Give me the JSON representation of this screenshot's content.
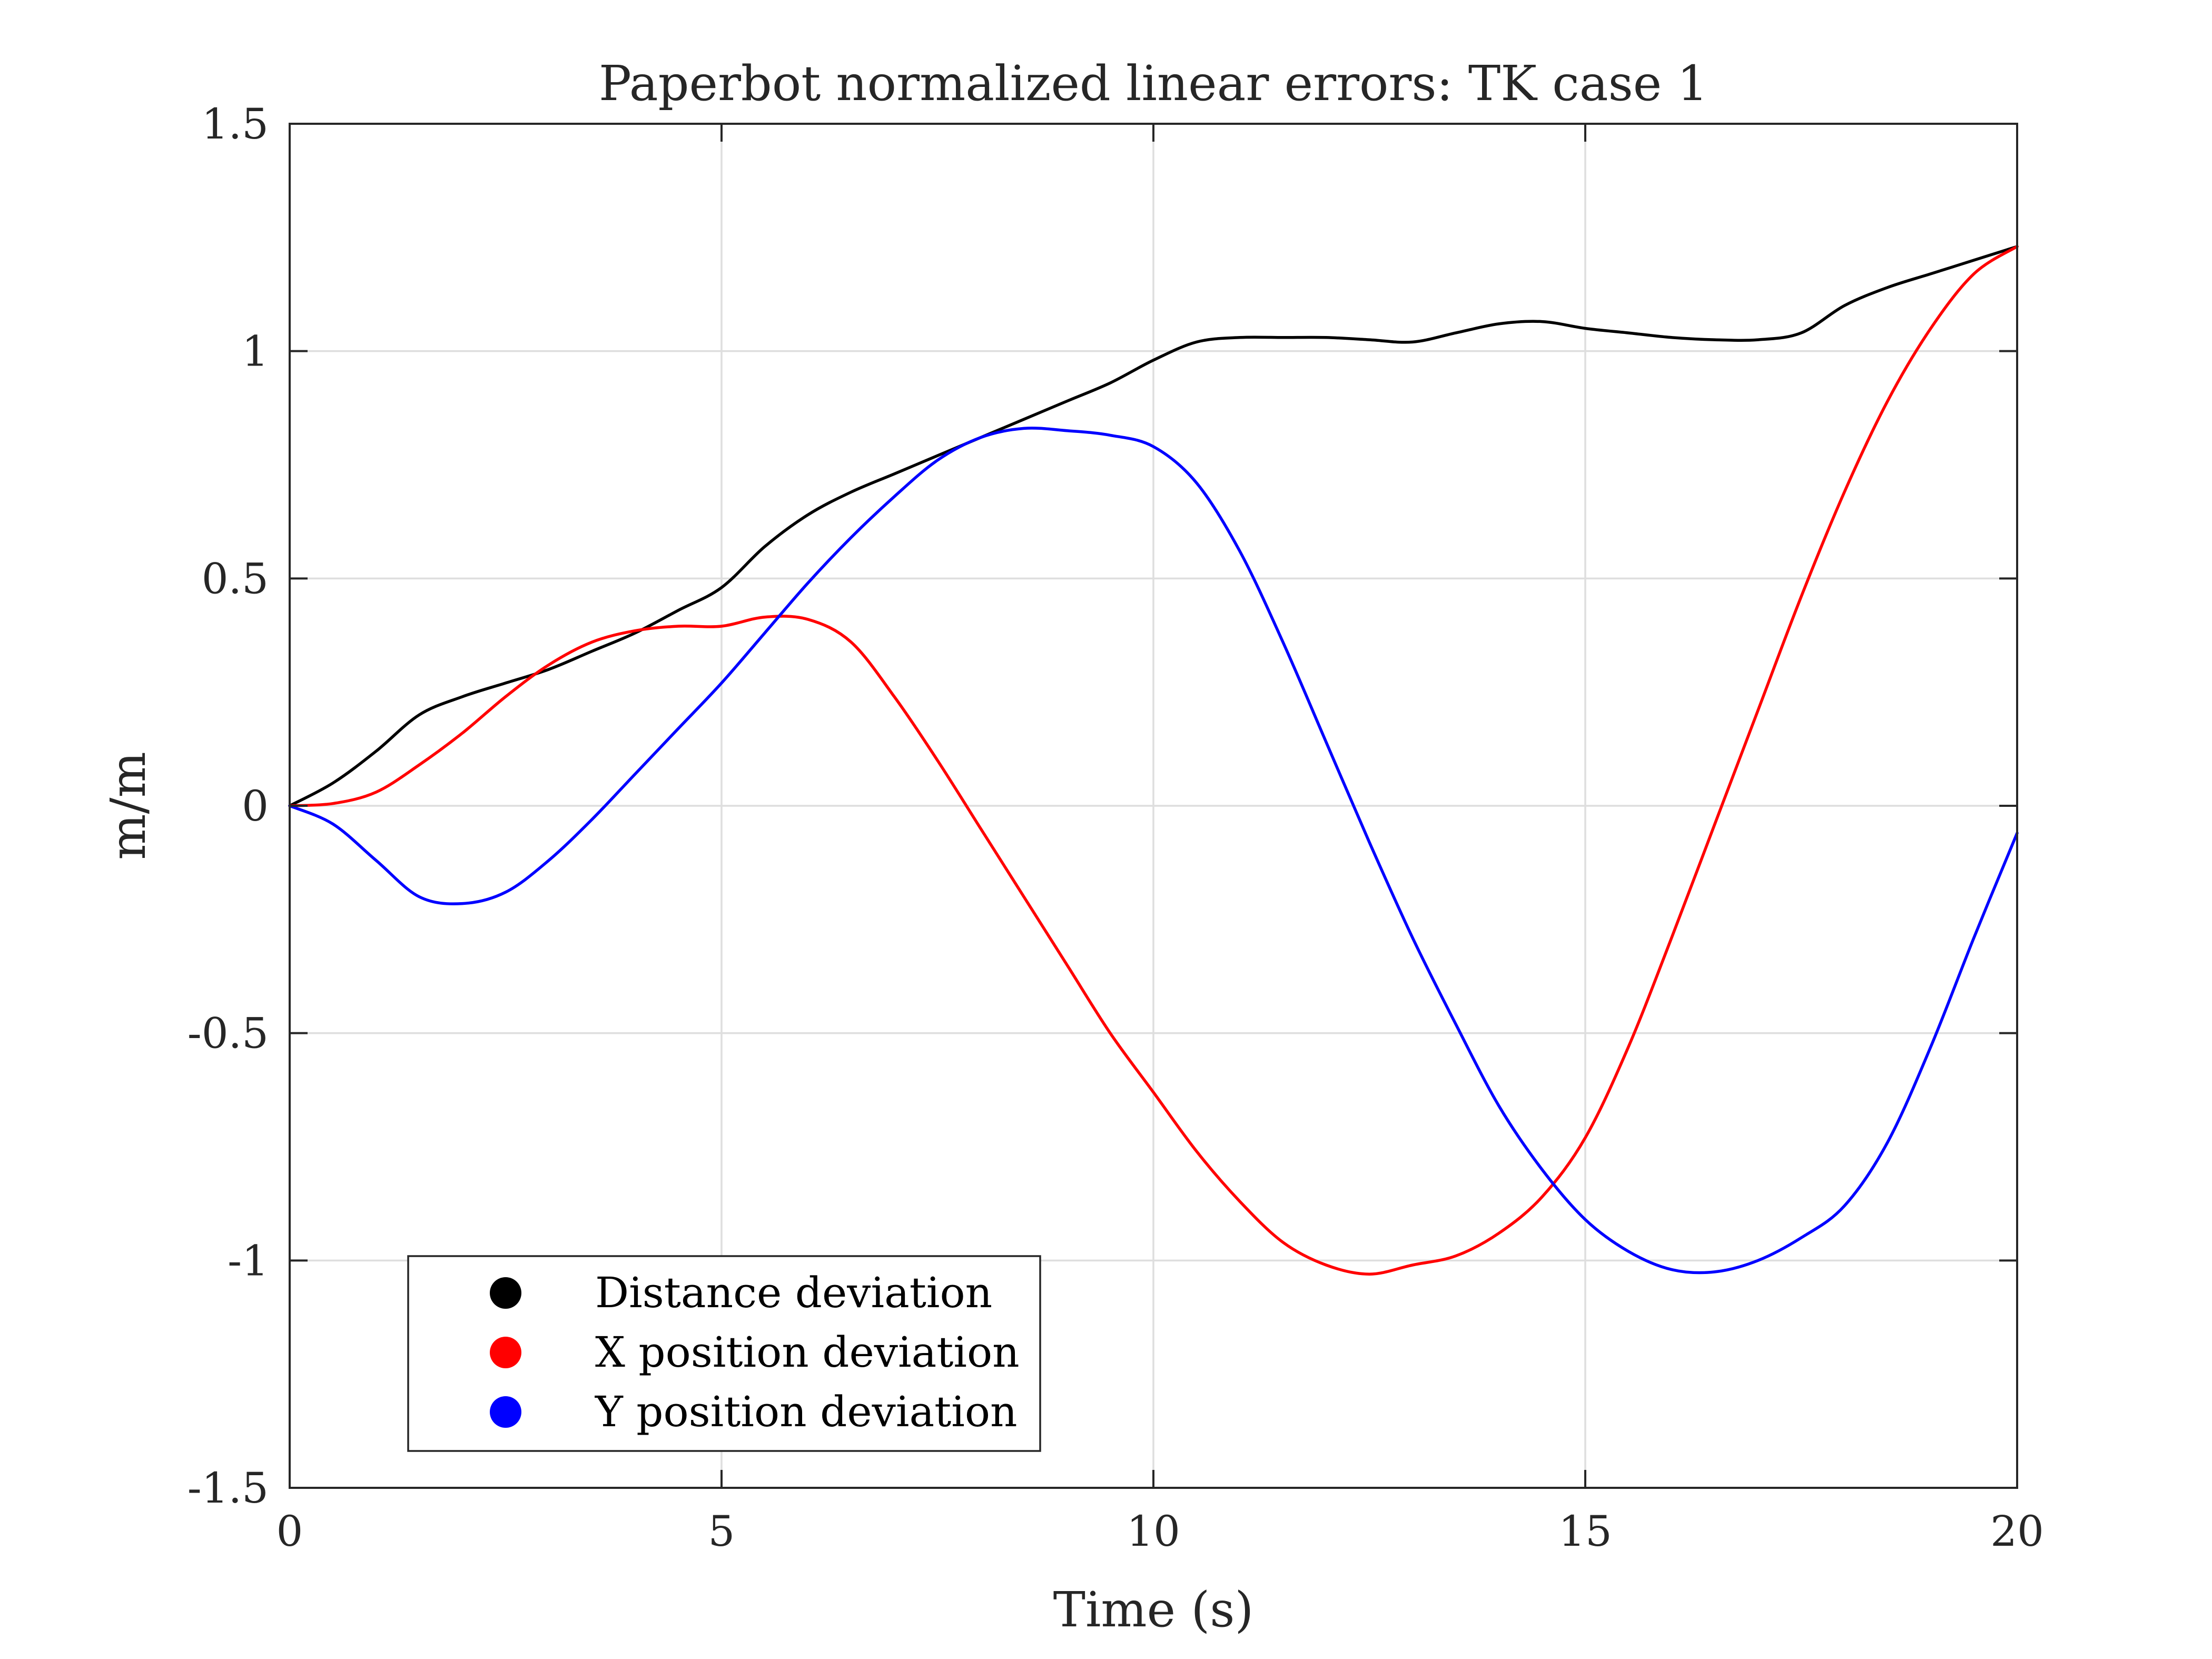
{
  "chart_data": {
    "type": "line",
    "title": "Paperbot normalized linear errors: TK case 1",
    "xlabel": "Time (s)",
    "ylabel": "m/m",
    "xlim": [
      0,
      20
    ],
    "ylim": [
      -1.5,
      1.5
    ],
    "xticks": [
      0,
      5,
      10,
      15,
      20
    ],
    "xtick_labels": [
      "0",
      "5",
      "10",
      "15",
      "20"
    ],
    "yticks": [
      -1.5,
      -1,
      -0.5,
      0,
      0.5,
      1,
      1.5
    ],
    "ytick_labels": [
      "-1.5",
      "-1",
      "-0.5",
      "0",
      "0.5",
      "1",
      "1.5"
    ],
    "grid": true,
    "legend_position": "bottom-left",
    "series": [
      {
        "name": "Distance deviation",
        "color": "#000000",
        "x": [
          0,
          0.5,
          1,
          1.5,
          2,
          2.5,
          3,
          3.5,
          4,
          4.5,
          5,
          5.5,
          6,
          6.5,
          7,
          7.5,
          8,
          8.5,
          9,
          9.5,
          10,
          10.5,
          11,
          11.5,
          12,
          12.5,
          13,
          13.5,
          14,
          14.5,
          15,
          15.5,
          16,
          16.5,
          17,
          17.5,
          18,
          18.5,
          19,
          19.5,
          20
        ],
        "y": [
          0,
          0.05,
          0.12,
          0.2,
          0.24,
          0.27,
          0.3,
          0.34,
          0.38,
          0.43,
          0.48,
          0.57,
          0.64,
          0.69,
          0.73,
          0.77,
          0.81,
          0.85,
          0.89,
          0.93,
          0.98,
          1.02,
          1.03,
          1.03,
          1.03,
          1.025,
          1.02,
          1.04,
          1.06,
          1.065,
          1.05,
          1.04,
          1.03,
          1.025,
          1.025,
          1.04,
          1.1,
          1.14,
          1.17,
          1.2,
          1.23
        ]
      },
      {
        "name": "X position deviation",
        "color": "#ff0000",
        "x": [
          0,
          0.5,
          1,
          1.5,
          2,
          2.5,
          3,
          3.5,
          4,
          4.5,
          5,
          5.5,
          6,
          6.5,
          7,
          7.5,
          8,
          8.5,
          9,
          9.5,
          10,
          10.5,
          11,
          11.5,
          12,
          12.5,
          13,
          13.5,
          14,
          14.5,
          15,
          15.5,
          16,
          16.5,
          17,
          17.5,
          18,
          18.5,
          19,
          19.5,
          20
        ],
        "y": [
          0,
          0.005,
          0.03,
          0.09,
          0.16,
          0.24,
          0.31,
          0.36,
          0.385,
          0.395,
          0.395,
          0.415,
          0.41,
          0.36,
          0.24,
          0.1,
          -0.05,
          -0.2,
          -0.35,
          -0.5,
          -0.63,
          -0.76,
          -0.87,
          -0.96,
          -1.01,
          -1.03,
          -1.01,
          -0.99,
          -0.94,
          -0.86,
          -0.73,
          -0.53,
          -0.29,
          -0.04,
          0.21,
          0.46,
          0.69,
          0.89,
          1.05,
          1.17,
          1.23
        ]
      },
      {
        "name": "Y position deviation",
        "color": "#0000ff",
        "x": [
          0,
          0.5,
          1,
          1.5,
          2,
          2.5,
          3,
          3.5,
          4,
          4.5,
          5,
          5.5,
          6,
          6.5,
          7,
          7.5,
          8,
          8.5,
          9,
          9.5,
          10,
          10.5,
          11,
          11.5,
          12,
          12.5,
          13,
          13.5,
          14,
          14.5,
          15,
          15.5,
          16,
          16.5,
          17,
          17.5,
          18,
          18.5,
          19,
          19.5,
          20
        ],
        "y": [
          0,
          -0.04,
          -0.12,
          -0.2,
          -0.215,
          -0.19,
          -0.12,
          -0.03,
          0.07,
          0.17,
          0.27,
          0.38,
          0.49,
          0.59,
          0.68,
          0.76,
          0.81,
          0.83,
          0.825,
          0.815,
          0.79,
          0.71,
          0.56,
          0.36,
          0.14,
          -0.08,
          -0.29,
          -0.48,
          -0.66,
          -0.8,
          -0.91,
          -0.98,
          -1.02,
          -1.025,
          -1.0,
          -0.95,
          -0.88,
          -0.74,
          -0.53,
          -0.29,
          -0.06
        ]
      }
    ]
  }
}
